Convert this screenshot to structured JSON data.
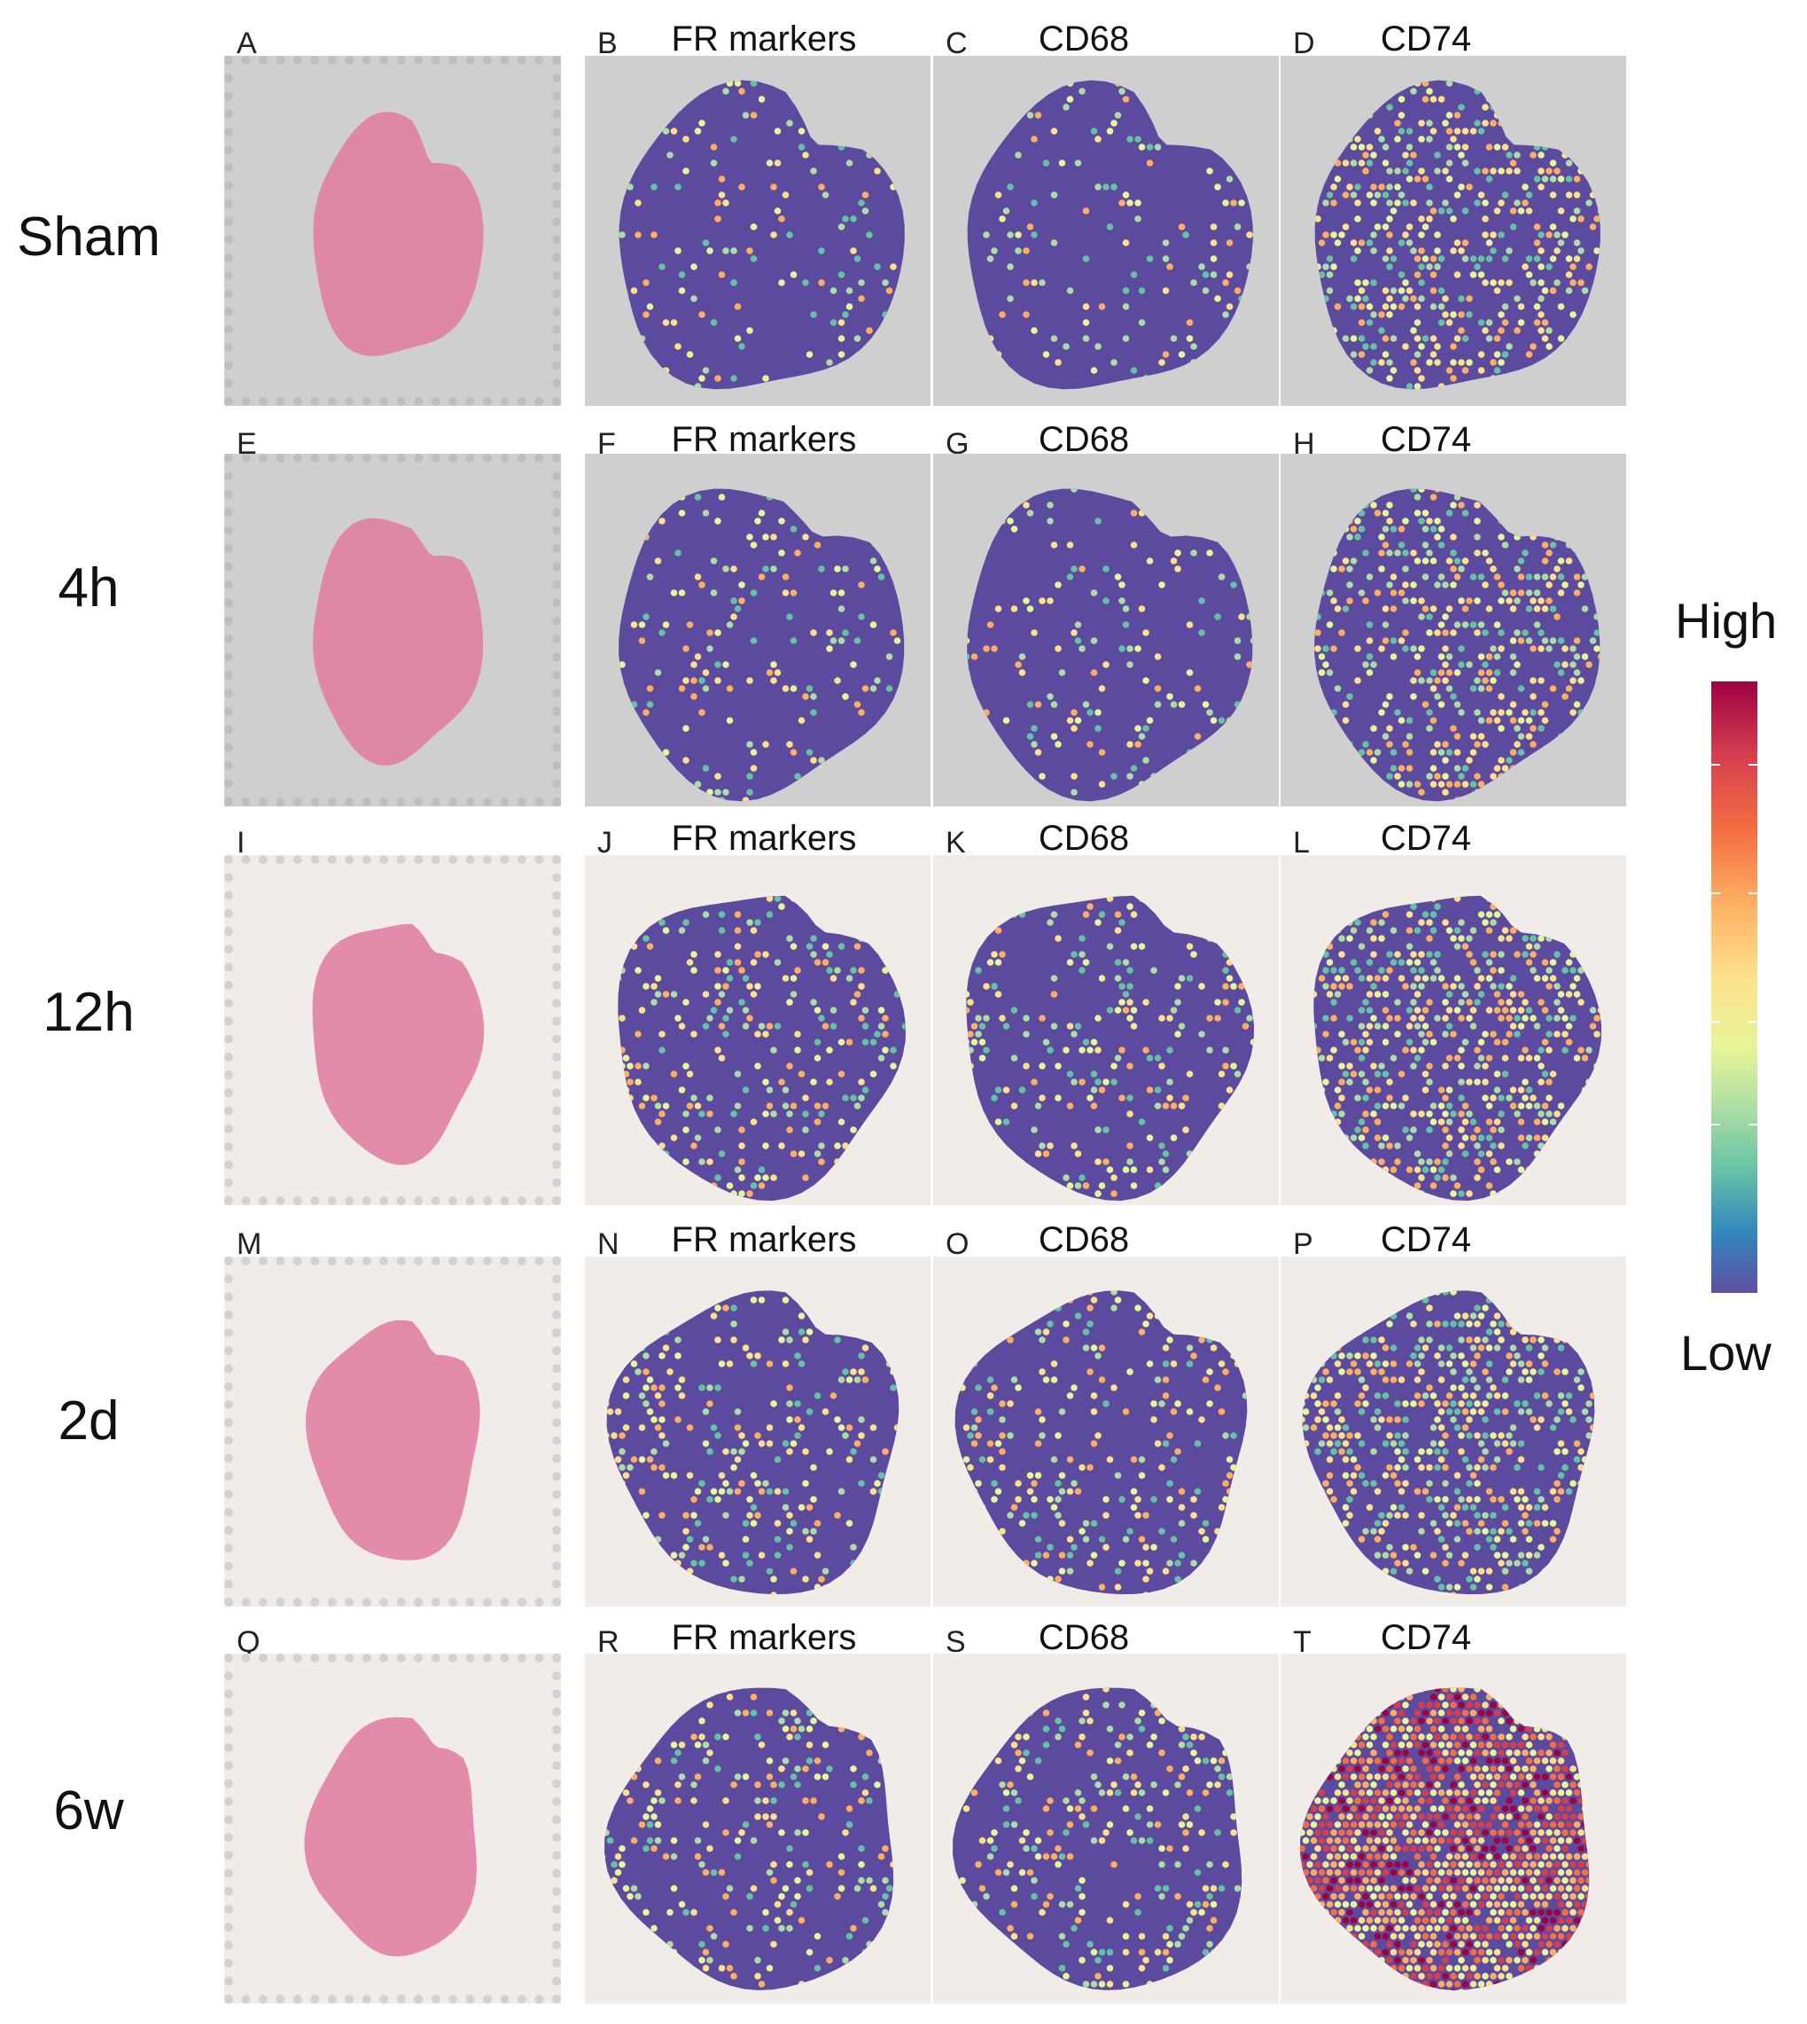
{
  "rows": [
    {
      "label": "Sham",
      "panels": [
        "A",
        "B",
        "C",
        "D"
      ]
    },
    {
      "label": "4h",
      "panels": [
        "E",
        "F",
        "G",
        "H"
      ]
    },
    {
      "label": "12h",
      "panels": [
        "I",
        "J",
        "K",
        "L"
      ]
    },
    {
      "label": "2d",
      "panels": [
        "M",
        "N",
        "O",
        "P"
      ]
    },
    {
      "label": "6w",
      "panels": [
        "Q",
        "R",
        "S",
        "T"
      ]
    }
  ],
  "column_titles": [
    "",
    "FR markers",
    "CD68",
    "CD74"
  ],
  "legend": {
    "high": "High",
    "low": "Low"
  },
  "colors": {
    "spot_low": "#5b4a9e",
    "scale": [
      "#9e0142",
      "#d53e4f",
      "#f46d43",
      "#fdae61",
      "#fee08b",
      "#e6f598",
      "#abdda4",
      "#66c2a5",
      "#3288bd",
      "#5e4fa2"
    ],
    "he_tissue": "#e07aa0",
    "he_bg_gray": "#cfcfcf",
    "he_bg_cream": "#f1ece7"
  }
}
